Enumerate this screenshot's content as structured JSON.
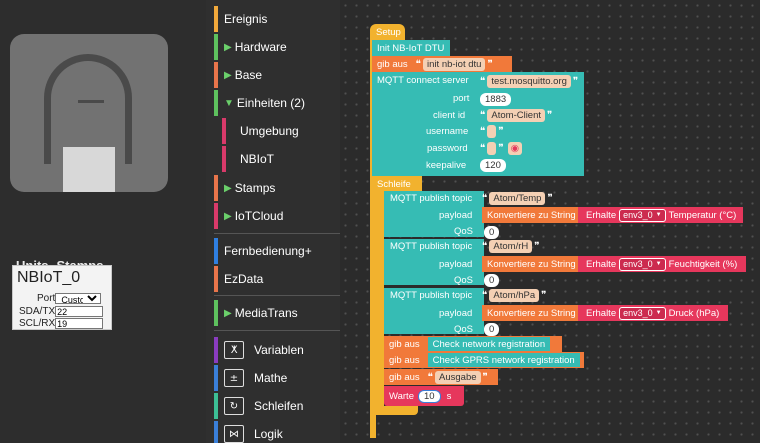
{
  "device_panel": {
    "tabs": [
      "Units",
      "Stamps"
    ],
    "unit_title": "NBIoT_0",
    "port_label": "Port",
    "port_value": "Custom",
    "sda_label": "SDA/TX",
    "sda_value": "22",
    "scl_label": "SCL/RX",
    "scl_value": "19"
  },
  "toolbox": {
    "categories": [
      {
        "label": "Ereignis",
        "color": "#f2a93b",
        "arrow": ""
      },
      {
        "label": "Hardware",
        "color": "#5ec15e",
        "arrow": "▶"
      },
      {
        "label": "Base",
        "color": "#e8754b",
        "arrow": "▶"
      },
      {
        "label": "Einheiten (2)",
        "color": "#5ec15e",
        "arrow": "▼"
      }
    ],
    "subcategories": [
      {
        "label": "Umgebung",
        "color": "#d93a6a"
      },
      {
        "label": "NBIoT",
        "color": "#d93a6a"
      }
    ],
    "categories2": [
      {
        "label": "Stamps",
        "color": "#e8754b",
        "arrow": "▶"
      },
      {
        "label": "IoTCloud",
        "color": "#d93a6a",
        "arrow": "▶"
      },
      {
        "label": "Fernbedienung+",
        "color": "#2f7fe0",
        "arrow": ""
      },
      {
        "label": "EzData",
        "color": "#e8754b",
        "arrow": ""
      },
      {
        "label": "MediaTrans",
        "color": "#5ec15e",
        "arrow": "▶"
      }
    ],
    "tools": [
      {
        "label": "Variablen",
        "color": "#8a3cc0",
        "icon": "ⵅ"
      },
      {
        "label": "Mathe",
        "color": "#3a7fd8",
        "icon": "±"
      },
      {
        "label": "Schleifen",
        "color": "#3cbf95",
        "icon": "↻"
      },
      {
        "label": "Logik",
        "color": "#3a7fd8",
        "icon": "⋈"
      }
    ]
  },
  "blocks": {
    "setup": "Setup",
    "init": "Init NB-IoT DTU",
    "gib_aus": "gib aus",
    "init_str": "init nb-iot dtu",
    "mqtt_connect": "MQTT connect server",
    "server": "test.mosquitto.org",
    "port_label": "port",
    "port_value": "1883",
    "client_label": "client id",
    "client_value": "Atom-Client",
    "username_label": "username",
    "password_label": "password",
    "keepalive_label": "keepalive",
    "keepalive_value": "120",
    "schleife": "Schleife",
    "publish_topic": "MQTT publish topic",
    "payload_label": "payload",
    "qos_label": "QoS",
    "konvertiere": "Konvertiere zu String",
    "erhalte": "Erhalte",
    "env": "env3_0",
    "publishes": [
      {
        "topic": "Atom/Temp",
        "qos": "0",
        "measure": "Temperatur (°C)"
      },
      {
        "topic": "Atom/rH",
        "qos": "0",
        "measure": "Feuchtigkeit (%)"
      },
      {
        "topic": "Atom/hPa",
        "qos": "0",
        "measure": "Druck (hPa)"
      }
    ],
    "check_network": "Check network registration",
    "check_gprs": "Check GPRS network registration",
    "ausgabe": "Ausgabe",
    "warte": "Warte",
    "warte_value": "10",
    "warte_unit": "s"
  },
  "colors": {
    "event": "#f2b22e",
    "teal": "#36bcb4",
    "orange": "#f1793a",
    "red": "#e6375c",
    "loop_teal": "#36bcb4"
  }
}
